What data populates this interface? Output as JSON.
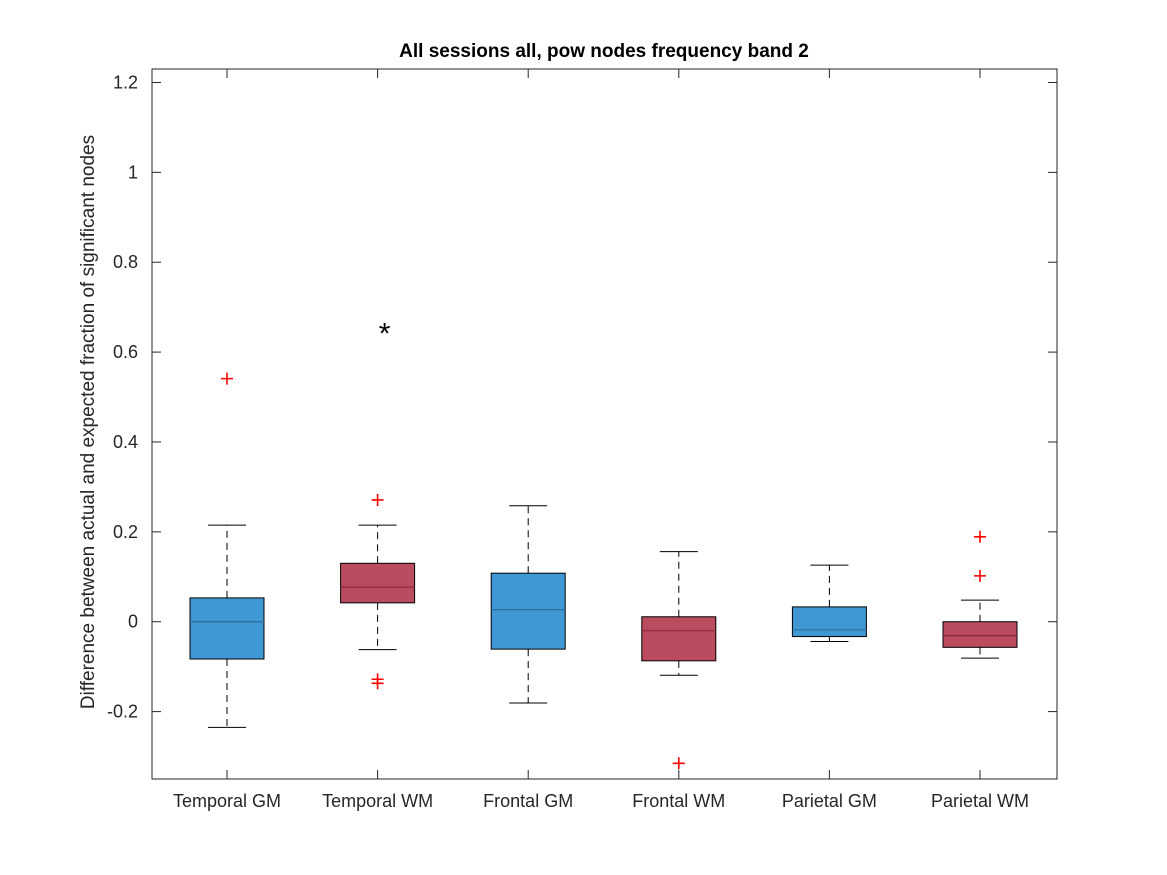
{
  "chart_data": {
    "type": "box",
    "title": "All sessions all, pow nodes frequency band 2",
    "xlabel": "",
    "ylabel": "Difference between actual and expected fraction of significant nodes",
    "ylim": [
      -0.35,
      1.23
    ],
    "yticks": [
      -0.2,
      0,
      0.2,
      0.4,
      0.6,
      0.8,
      1,
      1.2
    ],
    "ytick_labels": [
      "-0.2",
      "0",
      "0.2",
      "0.4",
      "0.6",
      "0.8",
      "1",
      "1.2"
    ],
    "grid": false,
    "categories": [
      "Temporal GM",
      "Temporal WM",
      "Frontal GM",
      "Frontal WM",
      "Parietal GM",
      "Parietal WM"
    ],
    "boxes": [
      {
        "category": "Temporal GM",
        "whisker_low": -0.235,
        "q1": -0.083,
        "median": 0.0,
        "q3": 0.053,
        "whisker_high": 0.215,
        "outliers": [
          0.541
        ],
        "color": "#3f97d3"
      },
      {
        "category": "Temporal WM",
        "whisker_low": -0.062,
        "q1": 0.042,
        "median": 0.077,
        "q3": 0.13,
        "whisker_high": 0.215,
        "outliers": [
          0.271,
          -0.128,
          -0.137
        ],
        "color": "#bb4b5f"
      },
      {
        "category": "Frontal GM",
        "whisker_low": -0.181,
        "q1": -0.061,
        "median": 0.027,
        "q3": 0.108,
        "whisker_high": 0.258,
        "outliers": [],
        "color": "#3f97d3"
      },
      {
        "category": "Frontal WM",
        "whisker_low": -0.119,
        "q1": -0.087,
        "median": -0.02,
        "q3": 0.011,
        "whisker_high": 0.156,
        "outliers": [
          -0.315
        ],
        "color": "#bb4b5f"
      },
      {
        "category": "Parietal GM",
        "whisker_low": -0.044,
        "q1": -0.033,
        "median": -0.018,
        "q3": 0.033,
        "whisker_high": 0.126,
        "outliers": [],
        "color": "#3f97d3"
      },
      {
        "category": "Parietal WM",
        "whisker_low": -0.081,
        "q1": -0.057,
        "median": -0.031,
        "q3": 0.0,
        "whisker_high": 0.048,
        "outliers": [
          0.189,
          0.102
        ],
        "color": "#bb4b5f"
      }
    ],
    "significance_markers": [
      {
        "category": "Temporal WM",
        "y": 0.655,
        "symbol": "*"
      }
    ],
    "colors": {
      "gm": "#3f97d3",
      "wm": "#bb4b5f",
      "outlier": "#ff0000",
      "median_gm": "#2f6f9e",
      "median_wm": "#8b2a3c"
    }
  }
}
